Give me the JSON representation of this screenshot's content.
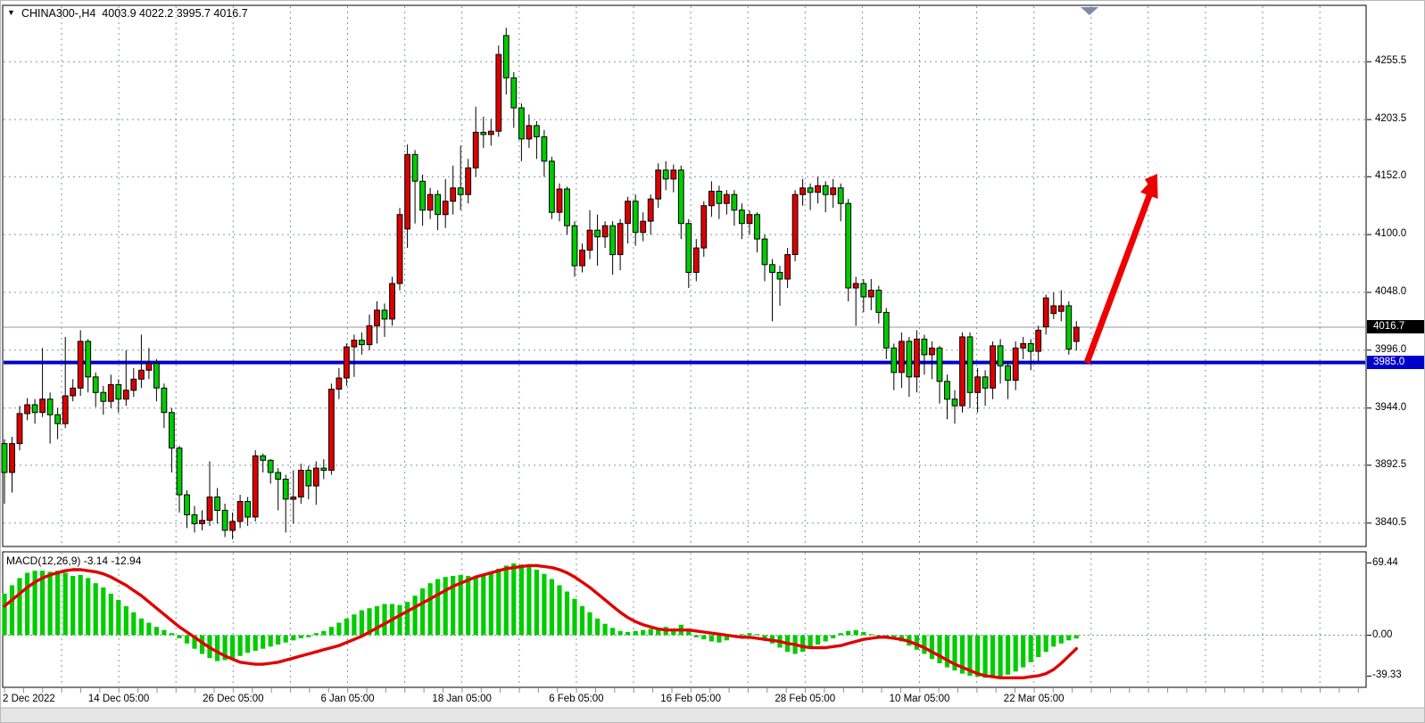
{
  "header": {
    "title": "CHINA300-,H4  4003.9 4022.2 3995.7 4016.7",
    "symbol": "CHINA300-",
    "timeframe": "H4",
    "dropdown_icon": "symbol-dropdown"
  },
  "colors": {
    "bull": "#dd0000",
    "bear": "#00cc00",
    "wick": "#000000",
    "grid": "#8494a6",
    "level_line": "#0000cc",
    "current_price_line": "#999999",
    "signal_line": "#e00000",
    "histogram": "#00cc00",
    "arrow": "#ee0000",
    "panel_bg": "#ffffff",
    "marker_triangle": "#7b8ca6"
  },
  "chart_data": {
    "type": "candlestick+macd",
    "title": "CHINA300-,H4",
    "legend": "grid on; right price scale; bottom time scale; red = bullish, green = bearish (Chinese convention)",
    "last_bar": {
      "open": 4003.9,
      "high": 4022.2,
      "low": 3995.7,
      "close": 4016.7
    },
    "price_axis": {
      "tick_labels": [
        "4255.5",
        "4203.5",
        "4152.0",
        "4100.0",
        "4048.0",
        "3996.0",
        "3944.0",
        "3892.5",
        "3840.5"
      ],
      "current_price": 4016.7,
      "current_label": "4016.7",
      "level_price": 3985.0,
      "level_label": "3985.0",
      "ylim": [
        3820,
        4300
      ]
    },
    "time_axis": {
      "labels": [
        "2 Dec 2022",
        "14 Dec 05:00",
        "26 Dec 05:00",
        "6 Jan 05:00",
        "18 Jan 05:00",
        "6 Feb 05:00",
        "16 Feb 05:00",
        "28 Feb 05:00",
        "10 Mar 05:00",
        "22 Mar 05:00"
      ]
    },
    "candles": [
      [
        3912,
        3916,
        3858,
        3886
      ],
      [
        3886,
        3918,
        3868,
        3912
      ],
      [
        3912,
        3946,
        3906,
        3939
      ],
      [
        3939,
        3953,
        3933,
        3947
      ],
      [
        3947,
        3952,
        3930,
        3940
      ],
      [
        3940,
        3998,
        3936,
        3952
      ],
      [
        3952,
        3958,
        3912,
        3938
      ],
      [
        3938,
        3944,
        3916,
        3930
      ],
      [
        3930,
        4008,
        3926,
        3955
      ],
      [
        3955,
        3970,
        3950,
        3962
      ],
      [
        3962,
        4014,
        3955,
        4004
      ],
      [
        4004,
        4006,
        3958,
        3972
      ],
      [
        3972,
        3976,
        3945,
        3958
      ],
      [
        3958,
        3964,
        3938,
        3950
      ],
      [
        3950,
        3974,
        3944,
        3965
      ],
      [
        3965,
        3970,
        3940,
        3952
      ],
      [
        3952,
        3996,
        3946,
        3960
      ],
      [
        3960,
        3980,
        3954,
        3970
      ],
      [
        3970,
        4010,
        3962,
        3978
      ],
      [
        3978,
        3998,
        3970,
        3984
      ],
      [
        3984,
        3988,
        3950,
        3962
      ],
      [
        3962,
        3966,
        3926,
        3940
      ],
      [
        3940,
        3944,
        3886,
        3908
      ],
      [
        3908,
        3910,
        3850,
        3866
      ],
      [
        3866,
        3870,
        3836,
        3848
      ],
      [
        3848,
        3856,
        3832,
        3840
      ],
      [
        3840,
        3852,
        3834,
        3843
      ],
      [
        3843,
        3896,
        3838,
        3864
      ],
      [
        3864,
        3872,
        3840,
        3852
      ],
      [
        3852,
        3858,
        3828,
        3834
      ],
      [
        3834,
        3850,
        3826,
        3842
      ],
      [
        3842,
        3866,
        3836,
        3860
      ],
      [
        3860,
        3864,
        3838,
        3846
      ],
      [
        3846,
        3906,
        3842,
        3901
      ],
      [
        3901,
        3903,
        3886,
        3897
      ],
      [
        3897,
        3898,
        3876,
        3886
      ],
      [
        3886,
        3890,
        3852,
        3880
      ],
      [
        3880,
        3884,
        3832,
        3862
      ],
      [
        3862,
        3888,
        3840,
        3864
      ],
      [
        3864,
        3894,
        3858,
        3888
      ],
      [
        3888,
        3892,
        3862,
        3874
      ],
      [
        3874,
        3896,
        3857,
        3890
      ],
      [
        3890,
        3898,
        3880,
        3888
      ],
      [
        3888,
        3966,
        3884,
        3961
      ],
      [
        3961,
        3980,
        3952,
        3971
      ],
      [
        3971,
        4002,
        3964,
        3999
      ],
      [
        3999,
        4010,
        3972,
        4005
      ],
      [
        4005,
        4012,
        3992,
        4001
      ],
      [
        4001,
        4028,
        3996,
        4018
      ],
      [
        4018,
        4040,
        4002,
        4032
      ],
      [
        4032,
        4038,
        4008,
        4024
      ],
      [
        4024,
        4062,
        4018,
        4056
      ],
      [
        4056,
        4124,
        4050,
        4118
      ],
      [
        4105,
        4181,
        4088,
        4172
      ],
      [
        4172,
        4176,
        4110,
        4148
      ],
      [
        4148,
        4154,
        4108,
        4122
      ],
      [
        4122,
        4142,
        4114,
        4136
      ],
      [
        4136,
        4140,
        4104,
        4118
      ],
      [
        4118,
        4150,
        4106,
        4130
      ],
      [
        4130,
        4162,
        4118,
        4142
      ],
      [
        4142,
        4180,
        4122,
        4136
      ],
      [
        4136,
        4168,
        4128,
        4160
      ],
      [
        4160,
        4215,
        4152,
        4192
      ],
      [
        4192,
        4206,
        4178,
        4190
      ],
      [
        4190,
        4204,
        4180,
        4193
      ],
      [
        4193,
        4270,
        4188,
        4262
      ],
      [
        4279,
        4286,
        4226,
        4241
      ],
      [
        4241,
        4246,
        4196,
        4214
      ],
      [
        4214,
        4218,
        4166,
        4186
      ],
      [
        4186,
        4208,
        4178,
        4198
      ],
      [
        4198,
        4202,
        4168,
        4188
      ],
      [
        4188,
        4194,
        4152,
        4166
      ],
      [
        4166,
        4170,
        4114,
        4120
      ],
      [
        4120,
        4146,
        4112,
        4141
      ],
      [
        4141,
        4143,
        4100,
        4108
      ],
      [
        4108,
        4112,
        4062,
        4072
      ],
      [
        4072,
        4092,
        4066,
        4086
      ],
      [
        4086,
        4122,
        4078,
        4104
      ],
      [
        4104,
        4118,
        4072,
        4098
      ],
      [
        4098,
        4112,
        4088,
        4108
      ],
      [
        4108,
        4112,
        4064,
        4082
      ],
      [
        4082,
        4114,
        4068,
        4110
      ],
      [
        4110,
        4134,
        4092,
        4130
      ],
      [
        4130,
        4136,
        4090,
        4102
      ],
      [
        4102,
        4120,
        4094,
        4112
      ],
      [
        4112,
        4136,
        4100,
        4132
      ],
      [
        4132,
        4164,
        4124,
        4158
      ],
      [
        4158,
        4166,
        4140,
        4150
      ],
      [
        4150,
        4163,
        4138,
        4158
      ],
      [
        4158,
        4162,
        4096,
        4110
      ],
      [
        4110,
        4114,
        4052,
        4066
      ],
      [
        4066,
        4096,
        4058,
        4088
      ],
      [
        4088,
        4130,
        4080,
        4126
      ],
      [
        4126,
        4148,
        4116,
        4139
      ],
      [
        4139,
        4144,
        4114,
        4128
      ],
      [
        4128,
        4140,
        4118,
        4136
      ],
      [
        4136,
        4140,
        4108,
        4122
      ],
      [
        4122,
        4128,
        4096,
        4110
      ],
      [
        4110,
        4122,
        4100,
        4118
      ],
      [
        4118,
        4120,
        4084,
        4096
      ],
      [
        4096,
        4100,
        4058,
        4073
      ],
      [
        4073,
        4078,
        4022,
        4066
      ],
      [
        4066,
        4072,
        4036,
        4060
      ],
      [
        4060,
        4088,
        4052,
        4082
      ],
      [
        4082,
        4140,
        4076,
        4136
      ],
      [
        4136,
        4150,
        4126,
        4142
      ],
      [
        4142,
        4146,
        4122,
        4138
      ],
      [
        4138,
        4152,
        4128,
        4144
      ],
      [
        4144,
        4148,
        4120,
        4136
      ],
      [
        4136,
        4150,
        4124,
        4142
      ],
      [
        4142,
        4146,
        4112,
        4128
      ],
      [
        4128,
        4132,
        4040,
        4052
      ],
      [
        4052,
        4062,
        4018,
        4056
      ],
      [
        4056,
        4060,
        4030,
        4044
      ],
      [
        4044,
        4060,
        4032,
        4050
      ],
      [
        4050,
        4054,
        4020,
        4030
      ],
      [
        4030,
        4034,
        3988,
        3998
      ],
      [
        3998,
        4002,
        3960,
        3976
      ],
      [
        3976,
        4012,
        3962,
        4004
      ],
      [
        4004,
        4008,
        3954,
        3972
      ],
      [
        3972,
        4014,
        3958,
        4006
      ],
      [
        4006,
        4010,
        3974,
        3992
      ],
      [
        3992,
        4004,
        3970,
        3998
      ],
      [
        3998,
        4000,
        3948,
        3968
      ],
      [
        3968,
        3974,
        3934,
        3952
      ],
      [
        3952,
        3960,
        3930,
        3946
      ],
      [
        3946,
        4012,
        3940,
        4008
      ],
      [
        4008,
        4012,
        3944,
        3958
      ],
      [
        3958,
        3980,
        3940,
        3972
      ],
      [
        3972,
        3978,
        3946,
        3962
      ],
      [
        3962,
        4004,
        3952,
        4000
      ],
      [
        4000,
        4006,
        3966,
        3982
      ],
      [
        3982,
        3986,
        3952,
        3969
      ],
      [
        3969,
        4004,
        3960,
        3998
      ],
      [
        3998,
        4008,
        3988,
        4002
      ],
      [
        4002,
        4006,
        3978,
        3995
      ],
      [
        3995,
        4018,
        3986,
        4014
      ],
      [
        4017,
        4046,
        4010,
        4043
      ],
      [
        4029,
        4048,
        4024,
        4036
      ],
      [
        4031,
        4050,
        4022,
        4036
      ],
      [
        4036,
        4040,
        3992,
        3997
      ],
      [
        4003.9,
        4022.2,
        3995.7,
        4016.7
      ]
    ],
    "macd": {
      "label": "MACD(12,26,9) -3.14 -12.94",
      "fast": 12,
      "slow": 26,
      "signal_period": 9,
      "macd_value": -3.14,
      "signal_value": -12.94,
      "tick_labels": [
        "69.44",
        "0.00",
        "-39.33"
      ],
      "ylim": [
        -45,
        72
      ],
      "histogram": [
        40,
        48,
        55,
        60,
        62,
        62,
        61,
        62,
        60,
        57,
        58,
        55,
        50,
        46,
        40,
        34,
        28,
        22,
        16,
        12,
        8,
        5,
        2,
        -3,
        -8,
        -13,
        -18,
        -22,
        -25,
        -24,
        -22,
        -20,
        -17,
        -15,
        -13,
        -11,
        -9,
        -7,
        -5,
        -3,
        -2,
        2,
        4,
        8,
        12,
        16,
        20,
        24,
        26,
        28,
        30,
        30,
        29,
        32,
        38,
        45,
        50,
        54,
        56,
        57,
        58,
        57,
        56,
        58,
        61,
        64,
        67,
        69,
        68,
        66,
        63,
        59,
        54,
        48,
        42,
        35,
        28,
        22,
        16,
        11,
        7,
        4,
        3,
        4,
        5,
        6,
        7,
        8,
        6,
        10,
        4,
        -2,
        -4,
        -6,
        -7,
        -5,
        -2,
        1,
        2,
        1,
        -4,
        -8,
        -12,
        -16,
        -18,
        -16,
        -12,
        -9,
        -6,
        -3,
        2,
        4,
        5,
        3,
        1,
        -1,
        -2,
        -3,
        -6,
        -10,
        -14,
        -18,
        -23,
        -27,
        -31,
        -34,
        -37,
        -39,
        -40,
        -41,
        -41,
        -40,
        -38,
        -35,
        -31,
        -26,
        -21,
        -16,
        -11,
        -8,
        -5,
        -3.14
      ],
      "signal": [
        28,
        34,
        40,
        46,
        51,
        55,
        58,
        60,
        62,
        63,
        63,
        62,
        61,
        59,
        56,
        52,
        48,
        43,
        38,
        32,
        26,
        20,
        14,
        8,
        3,
        -2,
        -7,
        -12,
        -16,
        -20,
        -23,
        -26,
        -27,
        -28,
        -28,
        -27,
        -26,
        -24,
        -22,
        -20,
        -18,
        -16,
        -14,
        -12,
        -10,
        -7,
        -4,
        -1,
        3,
        7,
        11,
        15,
        19,
        23,
        27,
        31,
        35,
        39,
        43,
        47,
        50,
        53,
        56,
        58,
        60,
        62,
        64,
        65,
        66,
        67,
        67,
        66,
        65,
        63,
        60,
        56,
        51,
        46,
        40,
        34,
        28,
        22,
        17,
        13,
        10,
        8,
        6,
        5,
        5,
        5,
        5,
        4,
        3,
        2,
        1,
        0,
        -1,
        -2,
        -2,
        -3,
        -4,
        -5,
        -6,
        -8,
        -9,
        -11,
        -12,
        -12,
        -12,
        -11,
        -10,
        -8,
        -6,
        -4,
        -3,
        -2,
        -2,
        -3,
        -4,
        -6,
        -9,
        -12,
        -16,
        -20,
        -24,
        -28,
        -31,
        -34,
        -37,
        -39,
        -40,
        -41,
        -41,
        -41,
        -41,
        -40,
        -39,
        -37,
        -33,
        -27,
        -20,
        -12.94
      ]
    },
    "annotations": {
      "trend_arrow": {
        "type": "arrow-up-right",
        "color": "#ee0000",
        "from_price": 3985,
        "note": "bullish projection from 3985 support"
      },
      "support_line": {
        "price": 3985.0,
        "color": "#0000cc",
        "style": "solid-thick"
      },
      "shift_marker": {
        "type": "chart-shift-triangle",
        "color": "#7b8ca6"
      }
    }
  }
}
